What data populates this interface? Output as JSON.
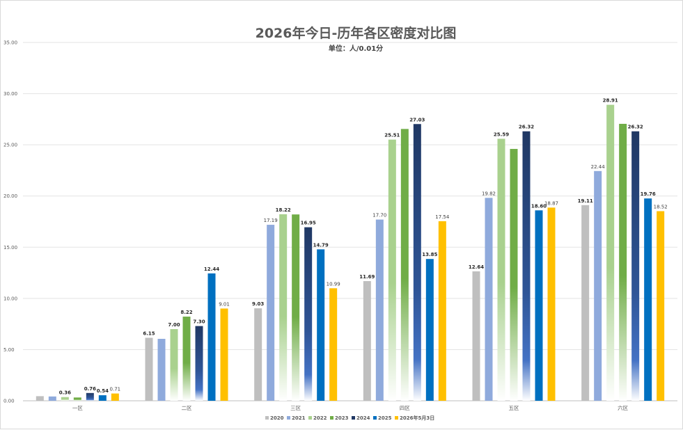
{
  "colors": {
    "s2020": "#bfbfbf",
    "s2021": "#8faadc",
    "s2022": "#a9d18e",
    "s2023": "#70ad47",
    "s2024": "#203864",
    "s2025": "#0070c0",
    "s2026": "#ffc000",
    "highlight": "#ff0000",
    "grid": "#e3e3e3",
    "axis": "#bfbfbf"
  },
  "chart_data": {
    "type": "bar",
    "title": "2026年今日-历年各区密度对比图",
    "subtitle": "单位：人/0.01分",
    "ylim": [
      0,
      35
    ],
    "yticks": [
      "0.00",
      "5.00",
      "10.00",
      "15.00",
      "20.00",
      "25.00",
      "30.00",
      "35.00"
    ],
    "grid": true,
    "legend_position": "bottom",
    "categories": [
      "一区",
      "二区",
      "三区",
      "四区",
      "五区",
      "六区"
    ],
    "series": [
      {
        "name": "2020",
        "values": [
          0.45,
          6.15,
          9.03,
          11.69,
          12.64,
          19.11
        ],
        "labels": [
          "",
          "6.15",
          "9.03",
          "11.69",
          "12.64",
          "19.11"
        ],
        "bold": [
          false,
          true,
          true,
          true,
          true,
          true
        ],
        "gradient": false
      },
      {
        "name": "2021",
        "values": [
          0.42,
          6.05,
          17.19,
          17.7,
          19.82,
          22.44
        ],
        "labels": [
          "",
          "",
          "17.19",
          "17.70",
          "19.82",
          "22.44"
        ],
        "bold": [
          false,
          false,
          false,
          false,
          false,
          false
        ],
        "gradient": false
      },
      {
        "name": "2022",
        "values": [
          0.36,
          7.0,
          18.22,
          25.51,
          25.59,
          28.91
        ],
        "labels": [
          "0.36",
          "7.00",
          "18.22",
          "25.51",
          "25.59",
          "28.91"
        ],
        "bold": [
          true,
          true,
          true,
          true,
          true,
          true
        ],
        "gradient": true
      },
      {
        "name": "2023",
        "values": [
          0.32,
          8.22,
          18.2,
          26.55,
          24.6,
          27.05
        ],
        "labels": [
          "",
          "8.22",
          "",
          "",
          "",
          ""
        ],
        "bold": [
          false,
          true,
          false,
          false,
          false,
          false
        ],
        "gradient": true
      },
      {
        "name": "2024",
        "values": [
          0.76,
          7.3,
          16.95,
          27.03,
          26.32,
          26.32
        ],
        "labels": [
          "0.76",
          "7.30",
          "16.95",
          "27.03",
          "26.32",
          "26.32"
        ],
        "bold": [
          true,
          true,
          true,
          true,
          true,
          true
        ],
        "gradient": true
      },
      {
        "name": "2025",
        "values": [
          0.54,
          12.44,
          14.79,
          13.85,
          18.6,
          19.76
        ],
        "labels": [
          "0.54",
          "12.44",
          "14.79",
          "13.85",
          "18.60",
          "19.76"
        ],
        "bold": [
          true,
          true,
          true,
          true,
          true,
          true
        ],
        "gradient": false
      },
      {
        "name": "2026年5月3日",
        "values": [
          0.71,
          9.01,
          10.99,
          17.54,
          18.87,
          18.52
        ],
        "labels": [
          "0.71",
          "9.01",
          "10.99",
          "17.54",
          "18.87",
          "18.52"
        ],
        "bold": [
          false,
          false,
          false,
          false,
          false,
          false
        ],
        "gradient": false,
        "highlight_index": 5
      }
    ]
  }
}
